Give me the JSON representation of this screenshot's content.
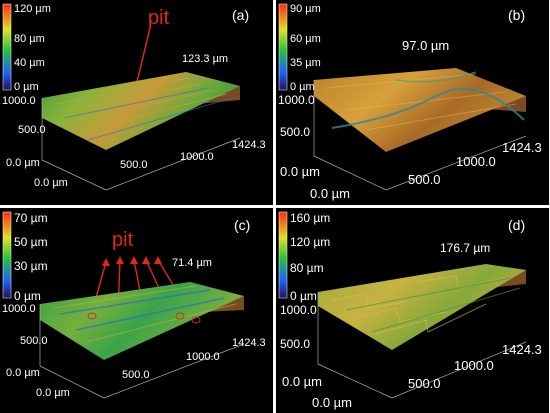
{
  "panels": [
    {
      "label": "(a)",
      "scale_ticks": [
        "120 µm",
        "80 µm",
        "40 µm",
        "0 µm"
      ],
      "height": "123.3 µm",
      "axis_y": "1000.0",
      "axis_mid_y": "500.0",
      "axis_x_end": "1424.3",
      "axis_x_mid": "1000.0",
      "axis_x_mid2": "500.0",
      "origin_1": "0.0 µm",
      "origin_2": "0.0 µm",
      "annotation": "pit",
      "colors": [
        "#2a9a34",
        "#79b23a",
        "#c4a53c",
        "#b26a2a",
        "#4ca046"
      ]
    },
    {
      "label": "(b)",
      "scale_ticks": [
        "90 µm",
        "60 µm",
        "35 µm",
        "0 µm"
      ],
      "height": "97.0 µm",
      "axis_y": "1000.0",
      "axis_mid_y": "500.0",
      "axis_x_end": "1424.3",
      "axis_x_mid": "1000.0",
      "axis_x_mid2": "500.0",
      "origin_1": "0.0 µm",
      "origin_2": "0.0 µm",
      "colors": [
        "#c98a30",
        "#d9a03a",
        "#a86a26",
        "#c08a32",
        "#3a9a7a"
      ]
    },
    {
      "label": "(c)",
      "scale_ticks": [
        "70 µm",
        "50 µm",
        "30 µm",
        "0 µm"
      ],
      "height": "71.4 µm",
      "axis_y": "1000.0",
      "axis_mid_y": "500.0",
      "axis_x_end": "1424.3",
      "axis_x_mid": "1000.0",
      "axis_x_mid2": "500.0",
      "origin_1": "0.0 µm",
      "origin_2": "0.0 µm",
      "annotation": "pit",
      "colors": [
        "#3aa44a",
        "#6cb03c",
        "#2a8ab4",
        "#9ab23a",
        "#3aa44a"
      ]
    },
    {
      "label": "(d)",
      "scale_ticks": [
        "160 µm",
        "120 µm",
        "80 µm",
        "0 µm"
      ],
      "height": "176.7 µm",
      "axis_y": "1000.0",
      "axis_mid_y": "500.0",
      "axis_x_end": "1424.3",
      "axis_x_mid": "1000.0",
      "axis_x_mid2": "500.0",
      "origin_1": "0.0 µm",
      "origin_2": "0.0 µm",
      "colors": [
        "#aab23a",
        "#c4b040",
        "#8aa83a",
        "#d0aa40",
        "#6aa83a"
      ]
    }
  ]
}
